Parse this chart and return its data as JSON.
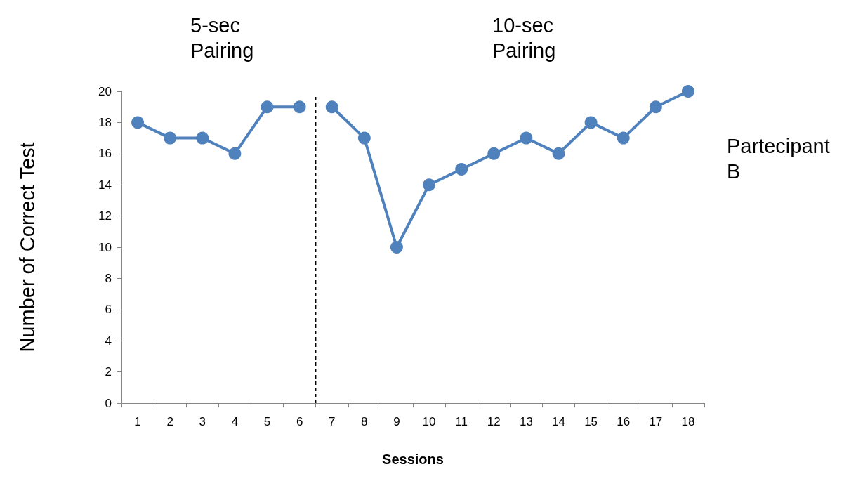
{
  "chart_data": {
    "type": "line",
    "xlabel": "Sessions",
    "ylabel": "Number of Correct Test",
    "categories": [
      "1",
      "2",
      "3",
      "4",
      "5",
      "6",
      "7",
      "8",
      "9",
      "10",
      "11",
      "12",
      "13",
      "14",
      "15",
      "16",
      "17",
      "18"
    ],
    "series": [
      {
        "color": "#4f81bd",
        "values": [
          18,
          17,
          17,
          16,
          19,
          19,
          null,
          null,
          null,
          null,
          null,
          null,
          null,
          null,
          null,
          null,
          null,
          null
        ]
      },
      {
        "color": "#4f81bd",
        "values": [
          null,
          null,
          null,
          null,
          null,
          null,
          19,
          17,
          10,
          14,
          15,
          16,
          17,
          16,
          18,
          17,
          19,
          20
        ]
      }
    ],
    "ylim": [
      0,
      20
    ],
    "yticks": [
      0,
      2,
      4,
      6,
      8,
      10,
      12,
      14,
      16,
      18,
      20
    ],
    "annotations": [
      "5-sec\nPairing",
      "10-sec\nPairing",
      "Partecipant\nB"
    ],
    "marker": "circle",
    "line_style": "solid"
  }
}
